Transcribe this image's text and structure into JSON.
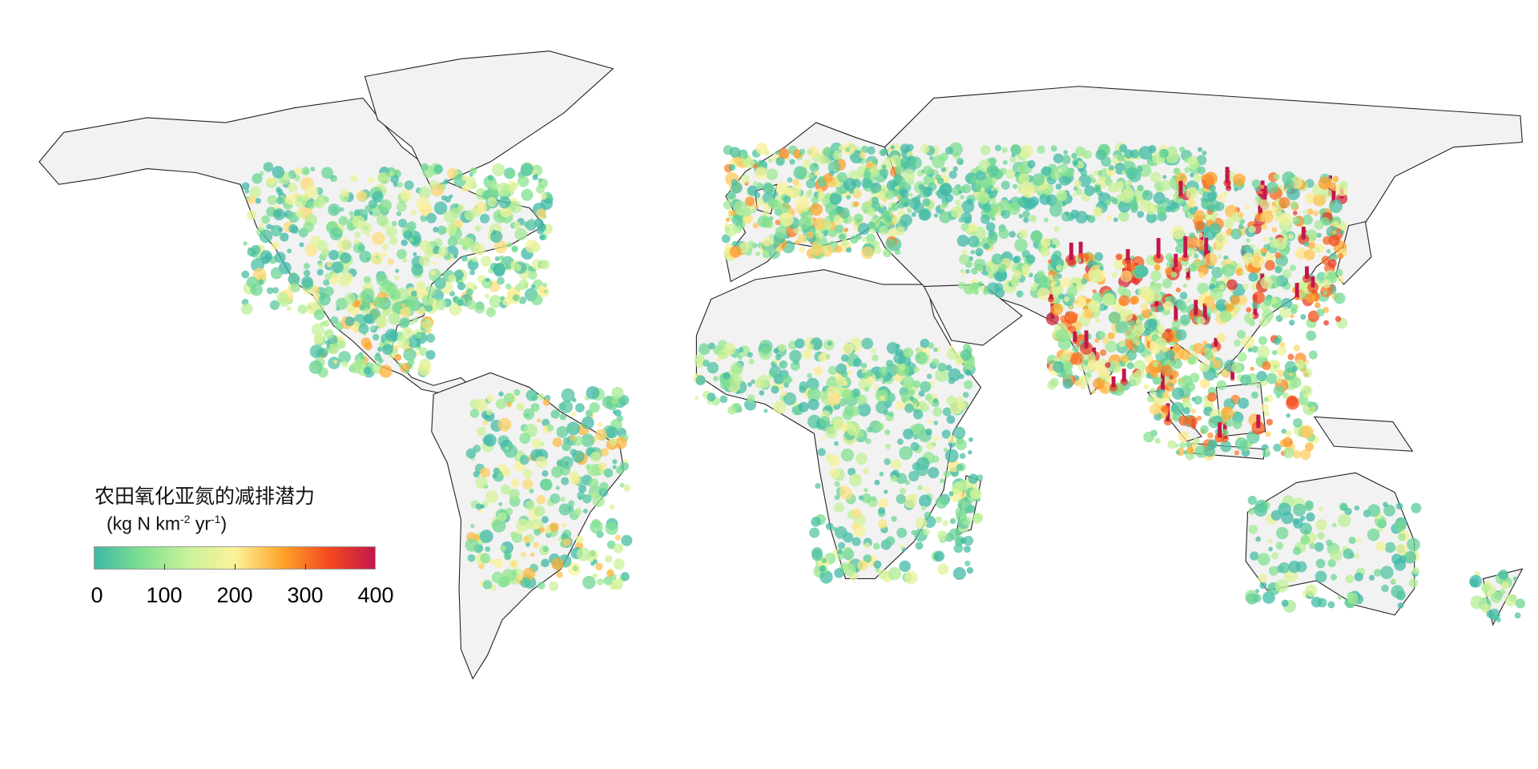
{
  "map": {
    "type": "choropleth-world",
    "land_color": "#f2f2f2",
    "coast_color": "#222222",
    "ocean_color": "#ffffff"
  },
  "legend": {
    "title": "农田氧化亚氮的减排潜力",
    "unit_prefix": "(kg N km",
    "unit_exp1": "-2",
    "unit_mid": " yr",
    "unit_exp2": "-1",
    "unit_suffix": ")",
    "range": [
      0,
      400
    ],
    "ticks": [
      "0",
      "100",
      "200",
      "300",
      "400"
    ],
    "colormap": [
      "#3fb8a8",
      "#7fe08f",
      "#c8f29a",
      "#fbf29a",
      "#ffa62b",
      "#f44a1e",
      "#c2174a"
    ]
  }
}
